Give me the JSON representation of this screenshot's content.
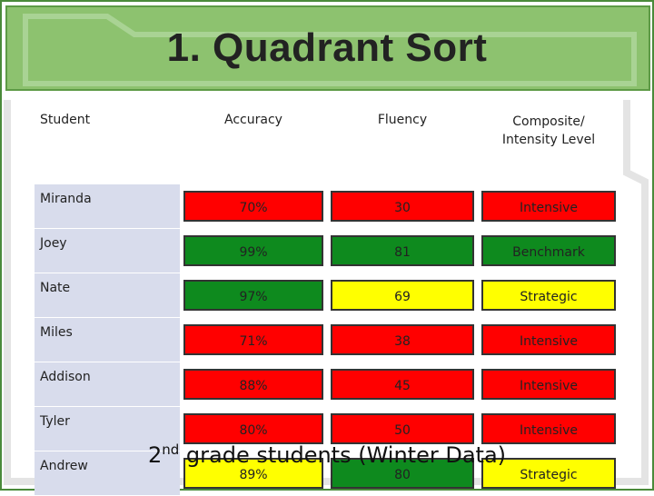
{
  "title": "1. Quadrant Sort",
  "table": {
    "headers": {
      "student": "Student",
      "accuracy": "Accuracy",
      "fluency": "Fluency",
      "composite_line1": "Composite/",
      "composite_line2": "Intensity Level"
    },
    "rows": [
      {
        "student": "Miranda",
        "accuracy": "70%",
        "fluency": "30",
        "level": "Intensive"
      },
      {
        "student": "Joey",
        "accuracy": "99%",
        "fluency": "81",
        "level": "Benchmark"
      },
      {
        "student": "Nate",
        "accuracy": "97%",
        "fluency": "69",
        "level": "Strategic"
      },
      {
        "student": "Miles",
        "accuracy": "71%",
        "fluency": "38",
        "level": "Intensive"
      },
      {
        "student": "Addison",
        "accuracy": "88%",
        "fluency": "45",
        "level": "Intensive"
      },
      {
        "student": "Tyler",
        "accuracy": "80%",
        "fluency": "50",
        "level": "Intensive"
      },
      {
        "student": "Andrew",
        "accuracy": "89%",
        "fluency": "80",
        "level": "Strategic"
      }
    ]
  },
  "footer": {
    "prefix": "2",
    "sup": "nd",
    "rest": " grade students (Winter Data)"
  },
  "colors": {
    "red": "#ff0000",
    "green": "#0e8a1e",
    "yellow": "#ffff00",
    "header_green": "#8dc26f"
  }
}
